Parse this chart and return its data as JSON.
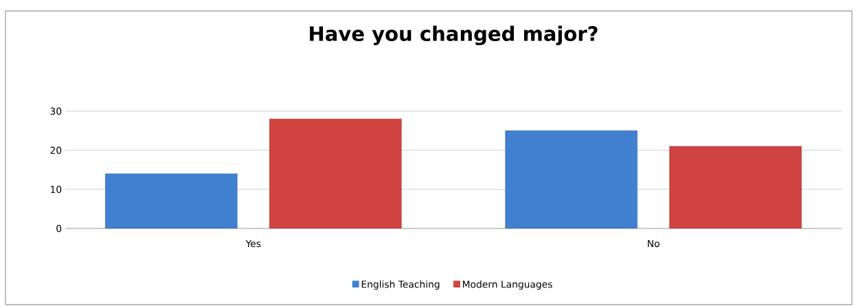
{
  "chart_data": {
    "type": "bar",
    "title": "Have you changed major?",
    "categories": [
      "Yes",
      "No"
    ],
    "series": [
      {
        "name": "English Teaching",
        "color": "#4180d0",
        "values": [
          14,
          25
        ]
      },
      {
        "name": "Modern Languages",
        "color": "#d04340",
        "values": [
          28,
          21
        ]
      }
    ],
    "ylim": [
      0,
      30
    ],
    "yticks": [
      0,
      10,
      20,
      30
    ],
    "grid": "y",
    "legend": "bottom"
  }
}
